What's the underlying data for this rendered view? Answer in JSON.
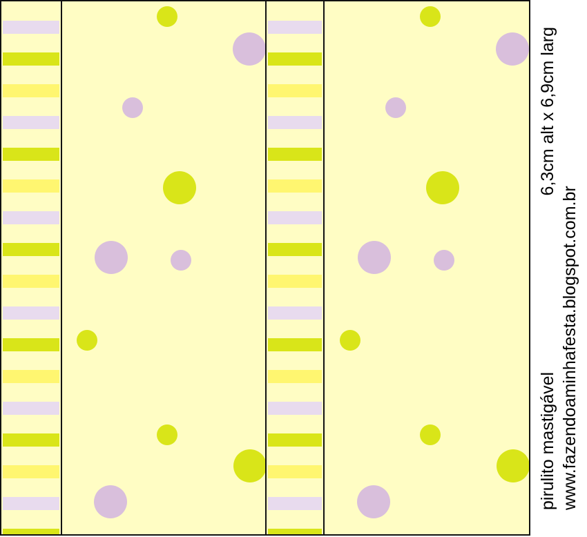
{
  "caption": {
    "line1_left": "pirulito mastigável",
    "line1_right": "6,3cm alt x 6,9cm larg",
    "line2": "www.fazendoaminhafesta.blogspot.com.br"
  },
  "colors": {
    "background": "#fffdc4",
    "lime": "#d9e519",
    "lavender": "#d9bfdc",
    "stripe_yellow": "#fff670",
    "stripe_lavender": "#e8dbee",
    "border": "#111111"
  }
}
